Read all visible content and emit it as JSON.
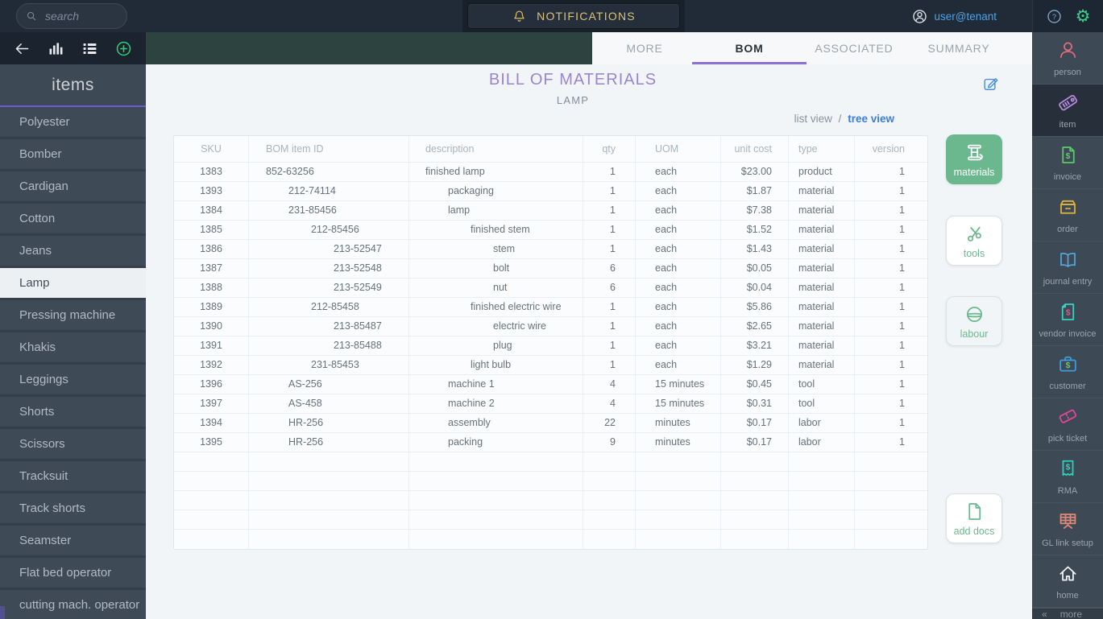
{
  "topbar": {
    "search_placeholder": "search",
    "notifications_label": "NOTIFICATIONS",
    "user_label": "user@tenant",
    "help_glyph": "?",
    "gear_glyph": "⚙"
  },
  "sidebar": {
    "title": "items",
    "items": [
      {
        "label": "Polyester",
        "selected": false
      },
      {
        "label": "Bomber",
        "selected": false
      },
      {
        "label": "Cardigan",
        "selected": false
      },
      {
        "label": "Cotton",
        "selected": false
      },
      {
        "label": "Jeans",
        "selected": false
      },
      {
        "label": "Lamp",
        "selected": true
      },
      {
        "label": "Pressing machine",
        "selected": false
      },
      {
        "label": "Khakis",
        "selected": false
      },
      {
        "label": "Leggings",
        "selected": false
      },
      {
        "label": "Shorts",
        "selected": false
      },
      {
        "label": "Scissors",
        "selected": false
      },
      {
        "label": "Tracksuit",
        "selected": false
      },
      {
        "label": "Track shorts",
        "selected": false
      },
      {
        "label": "Seamster",
        "selected": false
      },
      {
        "label": "Flat bed operator",
        "selected": false
      },
      {
        "label": "cutting mach. operator",
        "selected": false
      }
    ]
  },
  "tabs": [
    {
      "label": "MORE",
      "active": false
    },
    {
      "label": "BOM",
      "active": true
    },
    {
      "label": "ASSOCIATED",
      "active": false
    },
    {
      "label": "SUMMARY",
      "active": false
    }
  ],
  "page": {
    "title": "BILL OF MATERIALS",
    "subtitle": "LAMP"
  },
  "view_switch": {
    "list_label": "list view",
    "separator": "/",
    "tree_label": "tree view"
  },
  "table": {
    "columns": [
      "SKU",
      "BOM item ID",
      "description",
      "qty",
      "UOM",
      "unit cost",
      "type",
      "version"
    ],
    "rows": [
      {
        "sku": "1383",
        "id": "852-63256",
        "level": 0,
        "desc": "finished lamp",
        "qty": "1",
        "uom": "each",
        "cost": "$23.00",
        "type": "product",
        "ver": "1"
      },
      {
        "sku": "1393",
        "id": "212-74114",
        "level": 1,
        "desc": "packaging",
        "qty": "1",
        "uom": "each",
        "cost": "$1.87",
        "type": "material",
        "ver": "1"
      },
      {
        "sku": "1384",
        "id": "231-85456",
        "level": 1,
        "desc": "lamp",
        "qty": "1",
        "uom": "each",
        "cost": "$7.38",
        "type": "material",
        "ver": "1"
      },
      {
        "sku": "1385",
        "id": "212-85456",
        "level": 2,
        "desc": "finished stem",
        "qty": "1",
        "uom": "each",
        "cost": "$1.52",
        "type": "material",
        "ver": "1"
      },
      {
        "sku": "1386",
        "id": "213-52547",
        "level": 3,
        "desc": "stem",
        "qty": "1",
        "uom": "each",
        "cost": "$1.43",
        "type": "material",
        "ver": "1"
      },
      {
        "sku": "1387",
        "id": "213-52548",
        "level": 3,
        "desc": "bolt",
        "qty": "6",
        "uom": "each",
        "cost": "$0.05",
        "type": "material",
        "ver": "1"
      },
      {
        "sku": "1388",
        "id": "213-52549",
        "level": 3,
        "desc": "nut",
        "qty": "6",
        "uom": "each",
        "cost": "$0.04",
        "type": "material",
        "ver": "1"
      },
      {
        "sku": "1389",
        "id": "212-85458",
        "level": 2,
        "desc": "finished electric wire",
        "qty": "1",
        "uom": "each",
        "cost": "$5.86",
        "type": "material",
        "ver": "1"
      },
      {
        "sku": "1390",
        "id": "213-85487",
        "level": 3,
        "desc": "electric wire",
        "qty": "1",
        "uom": "each",
        "cost": "$2.65",
        "type": "material",
        "ver": "1"
      },
      {
        "sku": "1391",
        "id": "213-85488",
        "level": 3,
        "desc": "plug",
        "qty": "1",
        "uom": "each",
        "cost": "$3.21",
        "type": "material",
        "ver": "1"
      },
      {
        "sku": "1392",
        "id": "231-85453",
        "level": 2,
        "desc": "light bulb",
        "qty": "1",
        "uom": "each",
        "cost": "$1.29",
        "type": "material",
        "ver": "1"
      },
      {
        "sku": "1396",
        "id": "AS-256",
        "level": 1,
        "desc": "machine 1",
        "qty": "4",
        "uom": "15 minutes",
        "cost": "$0.45",
        "type": "tool",
        "ver": "1"
      },
      {
        "sku": "1397",
        "id": "AS-458",
        "level": 1,
        "desc": "machine 2",
        "qty": "4",
        "uom": "15 minutes",
        "cost": "$0.31",
        "type": "tool",
        "ver": "1"
      },
      {
        "sku": "1394",
        "id": "HR-256",
        "level": 1,
        "desc": "assembly",
        "qty": "22",
        "uom": "minutes",
        "cost": "$0.17",
        "type": "labor",
        "ver": "1"
      },
      {
        "sku": "1395",
        "id": "HR-256",
        "level": 1,
        "desc": "packing",
        "qty": "9",
        "uom": "minutes",
        "cost": "$0.17",
        "type": "labor",
        "ver": "1"
      }
    ],
    "empty_rows": 5
  },
  "action_buttons": [
    {
      "label": "materials",
      "icon": "spool-icon",
      "active": true
    },
    {
      "label": "tools",
      "icon": "scissors-icon",
      "active": false
    },
    {
      "label": "labour",
      "icon": "hardhat-icon",
      "active": false,
      "tint": true
    },
    {
      "label": "add docs",
      "icon": "document-icon",
      "active": false
    }
  ],
  "right_sidebar": {
    "items": [
      {
        "label": "person",
        "icon": "person-icon",
        "color": "#e26b7e",
        "active": false
      },
      {
        "label": "item",
        "icon": "tag-icon",
        "color": "#b78ce0",
        "active": true
      },
      {
        "label": "invoice",
        "icon": "invoice-doc-icon",
        "color": "#5dc96a",
        "active": false
      },
      {
        "label": "order",
        "icon": "box-icon",
        "color": "#e0b33c",
        "active": false
      },
      {
        "label": "journal entry",
        "icon": "book-icon",
        "color": "#54a5da",
        "active": false
      },
      {
        "label": "vendor invoice",
        "icon": "vendor-doc-icon",
        "color": "#41cfc3",
        "accent": "#e05585",
        "active": false
      },
      {
        "label": "customer",
        "icon": "briefcase-icon",
        "color": "#3f9ddb",
        "accent": "#5dc96a",
        "active": false
      },
      {
        "label": "pick ticket",
        "icon": "ticket-icon",
        "color": "#e8459c",
        "active": false
      },
      {
        "label": "RMA",
        "icon": "receipt-icon",
        "color": "#23d6bf",
        "active": false
      },
      {
        "label": "GL link setup",
        "icon": "grid-icon",
        "color": "#dc8b7b",
        "active": false
      },
      {
        "label": "home",
        "icon": "home-icon",
        "color": "#f2f5f7",
        "active": false
      }
    ],
    "collapse_glyph": "«",
    "more_label": "more"
  },
  "colors": {
    "accent_purple": "#8d6ed6",
    "title_purple": "#9c84d4",
    "tree_view_blue": "#3b7de2",
    "materials_green": "#6cb88e",
    "notifications_gold": "#dbc17a",
    "user_blue": "#4aa3e8",
    "gear_green": "#3ecf8e"
  }
}
